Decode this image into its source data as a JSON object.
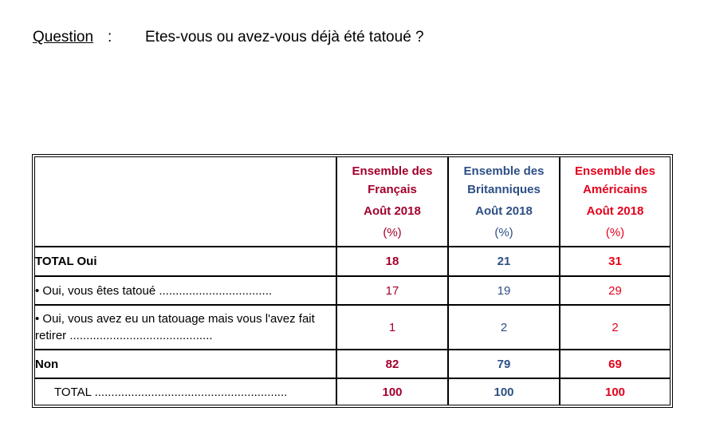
{
  "question": {
    "label": "Question",
    "colon": ":",
    "text": "Etes-vous ou avez-vous déjà été tatoué ?"
  },
  "columns": [
    {
      "line1": "Ensemble des",
      "line2": "Français",
      "period": "Août 2018",
      "unit": "(%)",
      "color": "#a3002b"
    },
    {
      "line1": "Ensemble des",
      "line2": "Britanniques",
      "period": "Août 2018",
      "unit": "(%)",
      "color": "#2d4f86"
    },
    {
      "line1": "Ensemble des",
      "line2": "Américains",
      "period": "Août 2018",
      "unit": "(%)",
      "color": "#e3001b"
    }
  ],
  "rows": [
    {
      "label": "TOTAL Oui",
      "values": [
        "18",
        "21",
        "31"
      ]
    },
    {
      "label": "• Oui, vous êtes tatoué ..................................",
      "values": [
        "17",
        "19",
        "29"
      ]
    },
    {
      "label": "• Oui, vous avez eu un tatouage mais vous l'avez fait retirer ...........................................",
      "values": [
        "1",
        "2",
        "2"
      ]
    },
    {
      "label": "Non",
      "values": [
        "82",
        "79",
        "69"
      ]
    },
    {
      "label": "TOTAL ..........................................................",
      "values": [
        "100",
        "100",
        "100"
      ]
    }
  ]
}
